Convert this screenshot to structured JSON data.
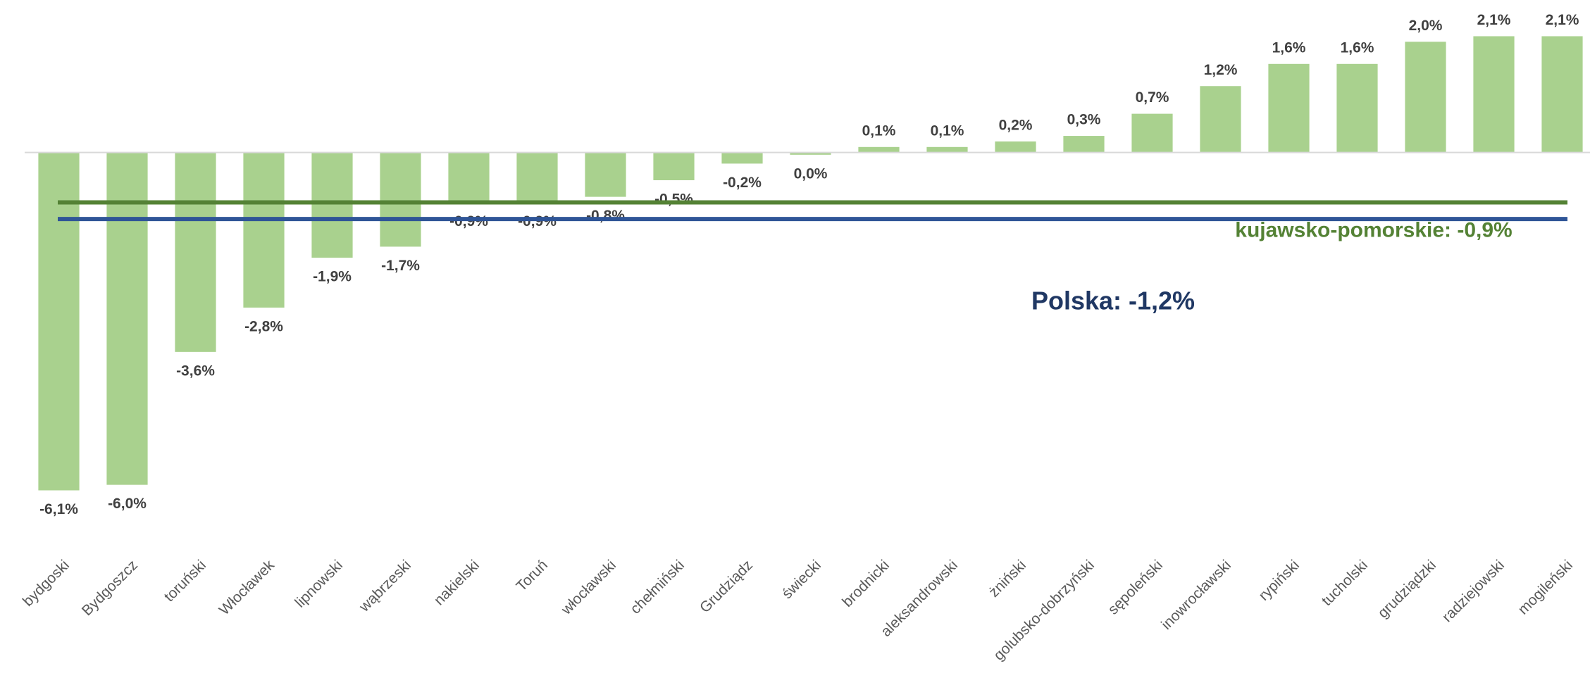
{
  "chart_data": {
    "type": "bar",
    "categories": [
      "bydgoski",
      "Bydgoszcz",
      "toruński",
      "Włocławek",
      "lipnowski",
      "wąbrzeski",
      "nakielski",
      "Toruń",
      "włocławski",
      "chełmiński",
      "Grudziądz",
      "świecki",
      "brodnicki",
      "aleksandrowski",
      "żniński",
      "golubsko-dobrzyński",
      "sępoleński",
      "inowrocławski",
      "rypiński",
      "tucholski",
      "grudziądzki",
      "radziejowski",
      "mogileński"
    ],
    "values": [
      -6.1,
      -6.0,
      -3.6,
      -2.8,
      -1.9,
      -1.7,
      -0.9,
      -0.9,
      -0.8,
      -0.5,
      -0.2,
      -0.04,
      0.1,
      0.1,
      0.2,
      0.3,
      0.7,
      1.2,
      1.6,
      1.6,
      2.0,
      2.1,
      2.1
    ],
    "value_labels": [
      "-6,1%",
      "-6,0%",
      "-3,6%",
      "-2,8%",
      "-1,9%",
      "-1,7%",
      "-0,9%",
      "-0,9%",
      "-0,8%",
      "-0,5%",
      "-0,2%",
      "0,0%",
      "0,1%",
      "0,1%",
      "0,2%",
      "0,3%",
      "0,7%",
      "1,2%",
      "1,6%",
      "1,6%",
      "2,0%",
      "2,1%",
      "2,1%"
    ],
    "color": "#a9d18e",
    "ylim": [
      -6.5,
      2.5
    ],
    "reference_lines": [
      {
        "name": "kujawsko-pomorskie",
        "value": -0.9,
        "label": "kujawsko-pomorskie: -0,9%",
        "color": "#548235"
      },
      {
        "name": "Polska",
        "value": -1.2,
        "label": "Polska: -1,2%",
        "color": "#2f5597"
      }
    ]
  }
}
